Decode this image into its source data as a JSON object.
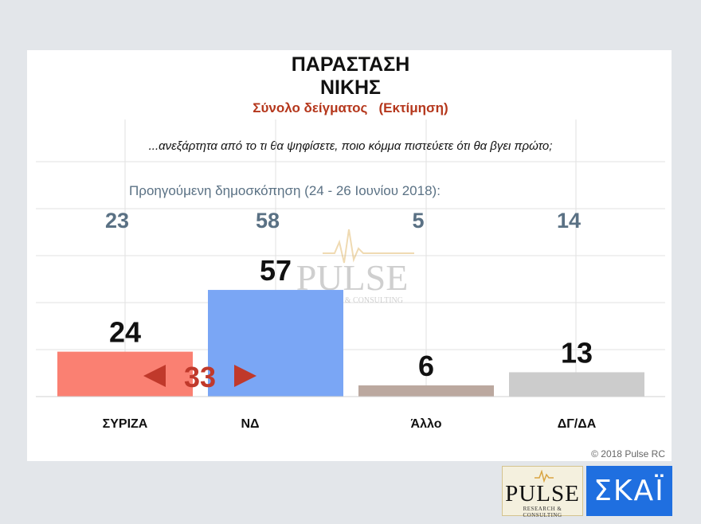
{
  "chart_data": {
    "type": "bar",
    "title": "ΠΑΡΑΣΤΑΣΗ ΝΙΚΗΣ",
    "title_lines": [
      "ΠΑΡΑΣΤΑΣΗ",
      "ΝΙΚΗΣ"
    ],
    "subtitle": "Σύνολο δείγματος   (Εκτίμηση)",
    "question": "...ανεξάρτητα από το τι θα ψηφίσετε, ποιο κόμμα πιστεύετε ότι θα βγει πρώτο;",
    "categories": [
      "ΣΥΡΙΖΑ",
      "ΝΔ",
      "Άλλο",
      "ΔΓ/ΔΑ"
    ],
    "values": [
      24,
      57,
      6,
      13
    ],
    "bar_colors": [
      "#fa8072",
      "#7aa6f5",
      "#bba89f",
      "#cccccc"
    ],
    "previous_label": "Προηγούμενη δημοσκόπηση (24 - 26 Ιουνίου 2018):",
    "previous_values": [
      23,
      58,
      5,
      14
    ],
    "gap_annotation": "33",
    "ylim": [
      0,
      100
    ],
    "grid": true
  },
  "copyright": "© 2018 Pulse RC",
  "watermark": {
    "main": "PULSE",
    "sub": "RESEARCH & CONSULTING"
  },
  "logos": {
    "pulse_main": "PULSE",
    "pulse_sub": "RESEARCH & CONSULTING",
    "skai": "ΣΚΑΪ"
  },
  "colors": {
    "subtitle": "#b5371c",
    "previous": "#5a7184",
    "gap": "#c0392b"
  }
}
